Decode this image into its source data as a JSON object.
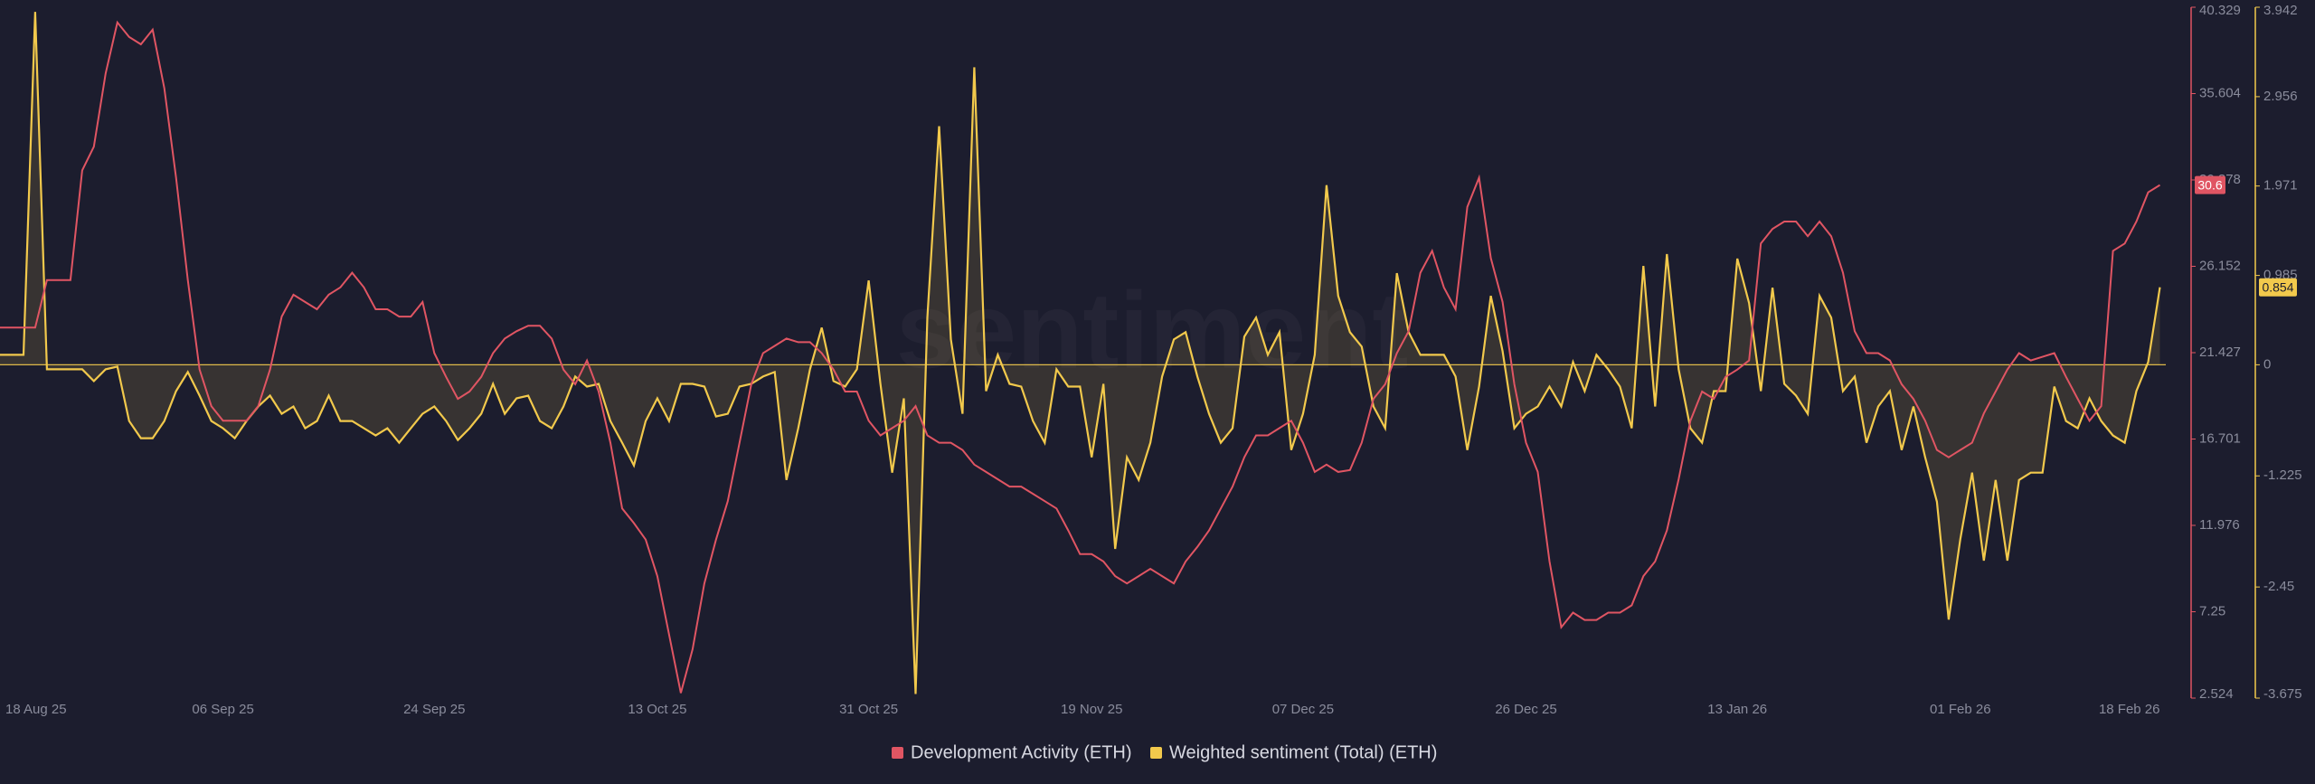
{
  "chart_data": {
    "type": "line",
    "watermark": "sentiment",
    "categories": [
      "18 Aug 25",
      null,
      null,
      null,
      null,
      null,
      null,
      null,
      null,
      null,
      null,
      null,
      null,
      null,
      null,
      null,
      null,
      null,
      null,
      "06 Sep 25",
      null,
      null,
      null,
      null,
      null,
      null,
      null,
      null,
      null,
      null,
      null,
      null,
      null,
      null,
      null,
      null,
      null,
      "24 Sep 25",
      null,
      null,
      null,
      null,
      null,
      null,
      null,
      null,
      null,
      null,
      null,
      null,
      null,
      null,
      null,
      null,
      null,
      null,
      "13 Oct 25",
      null,
      null,
      null,
      null,
      null,
      null,
      null,
      null,
      null,
      null,
      null,
      null,
      null,
      null,
      null,
      null,
      null,
      "31 Oct 25",
      null,
      null,
      null,
      null,
      null,
      null,
      null,
      null,
      null,
      null,
      null,
      null,
      null,
      null,
      null,
      null,
      null,
      null,
      "19 Nov 25",
      null,
      null,
      null,
      null,
      null,
      null,
      null,
      null,
      null,
      null,
      null,
      null,
      null,
      null,
      null,
      null,
      null,
      "07 Dec 25",
      null,
      null,
      null,
      null,
      null,
      null,
      null,
      null,
      null,
      null,
      null,
      null,
      null,
      null,
      null,
      null,
      null,
      null,
      "26 Dec 25",
      null,
      null,
      null,
      null,
      null,
      null,
      null,
      null,
      null,
      null,
      null,
      null,
      null,
      null,
      null,
      null,
      null,
      "13 Jan 26",
      null,
      null,
      null,
      null,
      null,
      null,
      null,
      null,
      null,
      null,
      null,
      null,
      null,
      null,
      null,
      null,
      null,
      null,
      "01 Feb 26",
      null,
      null,
      null,
      null,
      null,
      null,
      null,
      null,
      null,
      null,
      null,
      null,
      null,
      null,
      null,
      null,
      "18 Feb 26"
    ],
    "series": [
      {
        "name": "Development Activity (ETH)",
        "color": "#e05563",
        "axis": "y",
        "values": [
          22.8,
          22.8,
          22.8,
          22.8,
          25.4,
          25.4,
          25.4,
          31.4,
          32.7,
          36.7,
          39.5,
          38.7,
          38.3,
          39.1,
          35.9,
          31.0,
          25.4,
          20.5,
          18.5,
          17.7,
          17.7,
          17.7,
          18.5,
          20.5,
          23.4,
          24.6,
          24.2,
          23.8,
          24.6,
          25.0,
          25.8,
          25.0,
          23.8,
          23.8,
          23.4,
          23.4,
          24.2,
          21.4,
          20.1,
          18.9,
          19.3,
          20.1,
          21.4,
          22.2,
          22.6,
          22.9,
          22.9,
          22.2,
          20.5,
          19.7,
          21.0,
          19.3,
          16.5,
          12.9,
          12.1,
          11.2,
          9.2,
          6.0,
          2.8,
          5.2,
          8.8,
          11.2,
          13.3,
          16.5,
          19.7,
          21.4,
          21.8,
          22.2,
          22.0,
          22.0,
          21.4,
          20.5,
          19.3,
          19.3,
          17.7,
          16.9,
          17.3,
          17.7,
          18.5,
          16.9,
          16.5,
          16.5,
          16.1,
          15.3,
          14.9,
          14.5,
          14.1,
          14.1,
          13.7,
          13.3,
          12.9,
          11.7,
          10.4,
          10.4,
          10.0,
          9.2,
          8.8,
          9.2,
          9.6,
          9.2,
          8.8,
          10.0,
          10.8,
          11.7,
          12.9,
          14.1,
          15.7,
          16.9,
          16.9,
          17.3,
          17.7,
          16.5,
          14.9,
          15.3,
          14.9,
          15.0,
          16.5,
          18.9,
          19.7,
          21.4,
          22.6,
          25.8,
          27.0,
          25.0,
          23.8,
          29.4,
          31.0,
          26.6,
          24.2,
          19.7,
          16.5,
          14.9,
          10.0,
          6.4,
          7.2,
          6.8,
          6.8,
          7.2,
          7.2,
          7.6,
          9.2,
          10.0,
          11.7,
          14.5,
          17.7,
          19.3,
          18.9,
          20.1,
          20.5,
          21.0,
          27.4,
          28.2,
          28.6,
          28.6,
          27.8,
          28.6,
          27.8,
          25.8,
          22.6,
          21.4,
          21.4,
          21.0,
          19.7,
          18.9,
          17.7,
          16.1,
          15.7,
          16.1,
          16.5,
          18.1,
          19.3,
          20.5,
          21.4,
          21.0,
          21.2,
          21.4,
          20.1,
          18.9,
          17.7,
          18.5,
          27.0,
          27.4,
          28.6,
          30.2,
          30.6
        ]
      },
      {
        "name": "Weighted sentiment (Total) (ETH)",
        "color": "#f2c94c",
        "axis": "y2",
        "type": "area",
        "values": [
          0.11,
          0.11,
          0.11,
          3.89,
          -0.05,
          -0.05,
          -0.05,
          -0.05,
          -0.18,
          -0.05,
          -0.02,
          -0.62,
          -0.81,
          -0.81,
          -0.62,
          -0.29,
          -0.08,
          -0.34,
          -0.62,
          -0.7,
          -0.81,
          -0.62,
          -0.46,
          -0.34,
          -0.54,
          -0.46,
          -0.7,
          -0.62,
          -0.34,
          -0.62,
          -0.62,
          -0.7,
          -0.78,
          -0.7,
          -0.86,
          -0.7,
          -0.54,
          -0.46,
          -0.62,
          -0.83,
          -0.7,
          -0.54,
          -0.21,
          -0.54,
          -0.37,
          -0.34,
          -0.62,
          -0.7,
          -0.46,
          -0.13,
          -0.24,
          -0.21,
          -0.62,
          -0.86,
          -1.11,
          -0.62,
          -0.37,
          -0.62,
          -0.21,
          -0.21,
          -0.24,
          -0.57,
          -0.54,
          -0.24,
          -0.21,
          -0.13,
          -0.08,
          -1.27,
          -0.7,
          -0.05,
          0.41,
          -0.18,
          -0.24,
          -0.05,
          0.93,
          -0.21,
          -1.19,
          -0.37,
          -3.63,
          0.52,
          2.63,
          0.28,
          -0.54,
          3.28,
          -0.29,
          0.11,
          -0.21,
          -0.24,
          -0.62,
          -0.86,
          -0.05,
          -0.24,
          -0.24,
          -1.02,
          -0.21,
          -2.03,
          -1.02,
          -1.27,
          -0.86,
          -0.13,
          0.28,
          0.36,
          -0.13,
          -0.54,
          -0.86,
          -0.7,
          0.31,
          0.52,
          0.11,
          0.36,
          -0.94,
          -0.54,
          0.11,
          1.98,
          0.76,
          0.36,
          0.2,
          -0.46,
          -0.7,
          1.01,
          0.36,
          0.11,
          0.11,
          0.11,
          -0.13,
          -0.94,
          -0.24,
          0.76,
          0.15,
          -0.7,
          -0.54,
          -0.46,
          -0.24,
          -0.46,
          0.03,
          -0.29,
          0.11,
          -0.05,
          -0.24,
          -0.7,
          1.09,
          -0.46,
          1.22,
          -0.05,
          -0.7,
          -0.86,
          -0.29,
          -0.29,
          1.17,
          0.68,
          -0.29,
          0.85,
          -0.21,
          -0.34,
          -0.54,
          0.76,
          0.52,
          -0.29,
          -0.13,
          -0.86,
          -0.46,
          -0.29,
          -0.94,
          -0.46,
          -1.02,
          -1.51,
          -2.81,
          -1.92,
          -1.19,
          -2.16,
          -1.27,
          -2.16,
          -1.27,
          -1.19,
          -1.19,
          -0.24,
          -0.62,
          -0.7,
          -0.37,
          -0.62,
          -0.78,
          -0.86,
          -0.29,
          0.03,
          0.854
        ]
      }
    ],
    "ylim": [
      2.524,
      40.329
    ],
    "yticks": [
      2.524,
      7.25,
      11.976,
      16.701,
      21.427,
      26.152,
      30.878,
      35.604,
      40.329
    ],
    "y2lim": [
      -3.675,
      3.942
    ],
    "y2ticks": [
      -3.675,
      -2.45,
      -1.225,
      0,
      0.985,
      1.971,
      2.956,
      3.942
    ],
    "legend": "bottom"
  }
}
